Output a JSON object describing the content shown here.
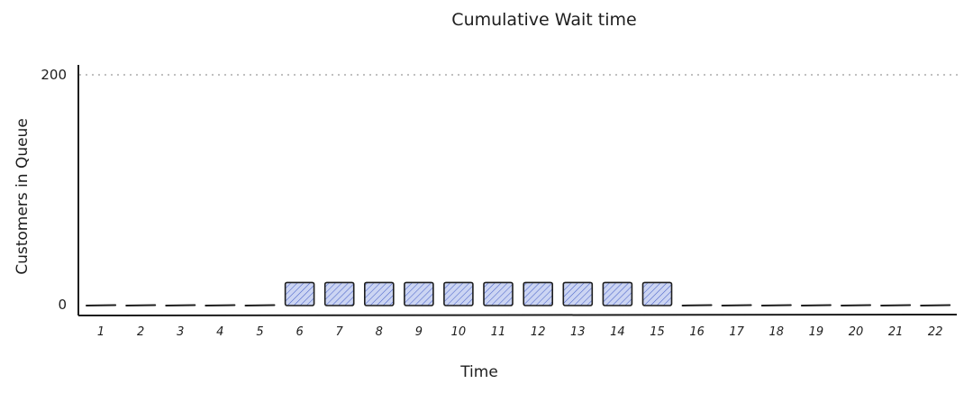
{
  "chart_data": {
    "type": "bar",
    "title": "Cumulative Wait time",
    "xlabel": "Time",
    "ylabel": "Customers in Queue",
    "categories": [
      "1",
      "2",
      "3",
      "4",
      "5",
      "6",
      "7",
      "8",
      "9",
      "10",
      "11",
      "12",
      "13",
      "14",
      "15",
      "16",
      "17",
      "18",
      "19",
      "20",
      "21",
      "22"
    ],
    "values": [
      0,
      0,
      0,
      0,
      0,
      20,
      20,
      20,
      20,
      20,
      20,
      20,
      20,
      20,
      20,
      0,
      0,
      0,
      0,
      0,
      0,
      0
    ],
    "ylim": [
      0,
      200
    ],
    "yticks": [
      "0",
      "200"
    ],
    "grid": "dotted line at 200",
    "legend": "none",
    "colors": {
      "bar_fill": "#a5b4e8",
      "bar_hatch": "#4a63c9",
      "ink": "#1e1e1e",
      "grid": "#9a9a9a"
    }
  }
}
